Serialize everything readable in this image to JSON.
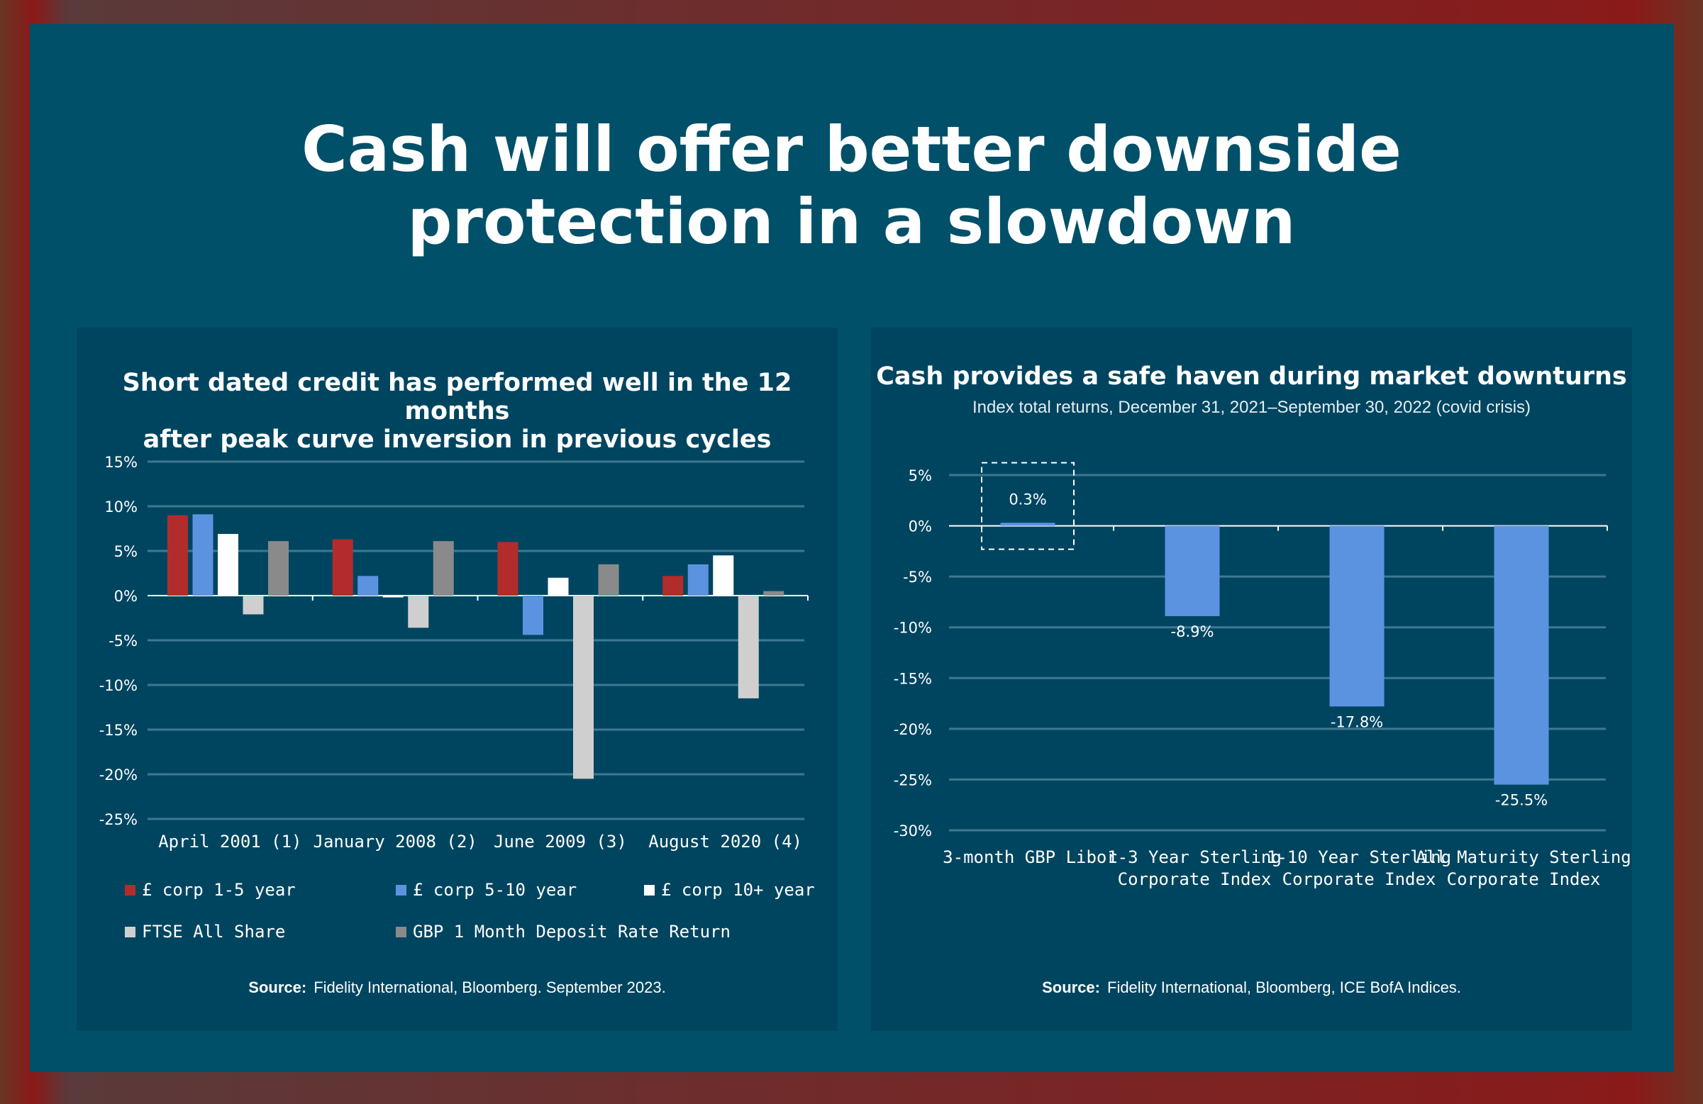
{
  "title": [
    "Cash will offer better downside",
    "protection in a slowdown"
  ],
  "chart_data": [
    {
      "type": "bar",
      "title": [
        "Short dated credit has performed well in the 12 months",
        "after peak curve inversion in previous cycles"
      ],
      "categories": [
        "April 2001 (1)",
        "January 2008 (2)",
        "June 2009 (3)",
        "August 2020 (4)"
      ],
      "ylim": [
        -25,
        15
      ],
      "yticks": [
        "15%",
        "10%",
        "5%",
        "0%",
        "-5%",
        "-10%",
        "-15%",
        "-20%",
        "-25%"
      ],
      "grid": true,
      "legend_position": "bottom",
      "series": [
        {
          "name": "£ corp 1-5 year",
          "color": "#b32c2c",
          "values": [
            9.0,
            6.3,
            6.0,
            2.2
          ]
        },
        {
          "name": "£ corp 5-10 year",
          "color": "#5c93e0",
          "values": [
            9.1,
            2.2,
            -4.4,
            3.5
          ]
        },
        {
          "name": "£ corp 10+ year",
          "color": "#ffffff",
          "values": [
            6.9,
            -0.2,
            2.0,
            4.5
          ]
        },
        {
          "name": "FTSE All Share",
          "color": "#cfcfcf",
          "values": [
            -2.1,
            -3.6,
            -20.5,
            -11.5
          ]
        },
        {
          "name": "GBP 1 Month Deposit Rate Return",
          "color": "#8a8a8a",
          "values": [
            6.1,
            6.1,
            3.5,
            0.5
          ]
        }
      ],
      "source_label": "Source:",
      "source_text": "Fidelity International, Bloomberg. September 2023."
    },
    {
      "type": "bar",
      "title": "Cash provides a safe haven during market downturns",
      "subtitle": "Index total returns, December 31, 2021–September 30, 2022 (covid crisis)",
      "categories": [
        [
          "3-month GBP Libor",
          ""
        ],
        [
          "1-3 Year Sterling",
          "Corporate Index"
        ],
        [
          "1-10 Year Sterling",
          "Corporate Index"
        ],
        [
          "All Maturity Sterling",
          "Corporate Index"
        ]
      ],
      "ylim": [
        -30,
        5
      ],
      "yticks": [
        "5%",
        "0%",
        "-5%",
        "-10%",
        "-15%",
        "-20%",
        "-25%",
        "-30%"
      ],
      "grid": true,
      "color": "#5c93e0",
      "values": [
        0.3,
        -8.9,
        -17.8,
        -25.5
      ],
      "data_labels": [
        "0.3%",
        "-8.9%",
        "-17.8%",
        "-25.5%"
      ],
      "highlight_category": "3-month GBP Libor",
      "source_label": "Source:",
      "source_text": "Fidelity International, Bloomberg, ICE BofA Indices."
    }
  ]
}
